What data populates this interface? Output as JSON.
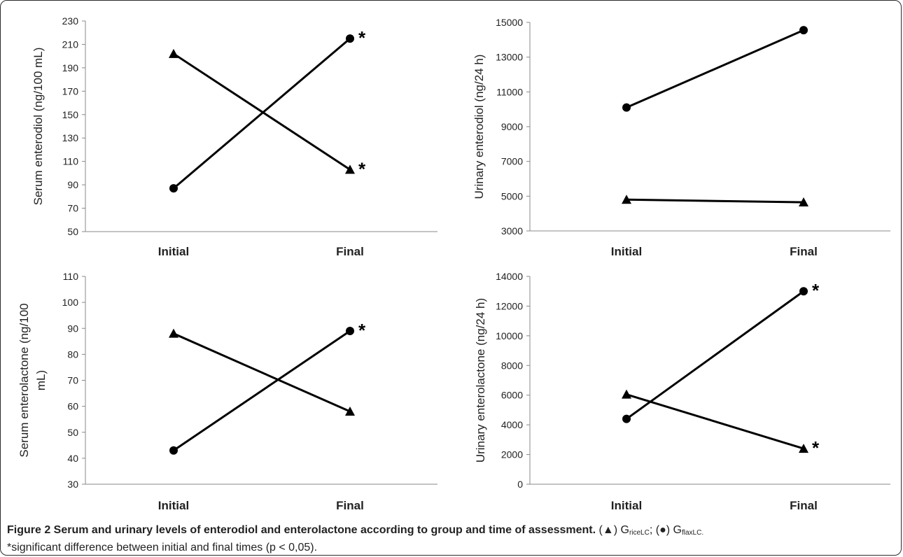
{
  "chart_data": [
    {
      "type": "line",
      "id": "serum-enterodiol",
      "categories": [
        "Initial",
        "Final"
      ],
      "ylabel": "Serum enterodiol  (ng/100 mL)",
      "ylim": [
        50,
        230
      ],
      "yticks": [
        "50",
        "70",
        "90",
        "110",
        "130",
        "150",
        "170",
        "190",
        "210",
        "230"
      ],
      "grid": false,
      "series": [
        {
          "marker": "triangle",
          "values": [
            202,
            103
          ],
          "significant": [
            false,
            true
          ]
        },
        {
          "marker": "circle",
          "values": [
            87,
            215
          ],
          "significant": [
            false,
            true
          ]
        }
      ]
    },
    {
      "type": "line",
      "id": "urinary-enterodiol",
      "categories": [
        "Initial",
        "Final"
      ],
      "ylabel": "Urinary enterodiol (ng/24 h)",
      "ylim": [
        3000,
        15000
      ],
      "yticks": [
        "3000",
        "5000",
        "7000",
        "9000",
        "11000",
        "13000",
        "15000"
      ],
      "grid": false,
      "series": [
        {
          "marker": "triangle",
          "values": [
            4800,
            4650
          ],
          "significant": [
            false,
            false
          ]
        },
        {
          "marker": "circle",
          "values": [
            10100,
            14550
          ],
          "significant": [
            false,
            false
          ]
        }
      ]
    },
    {
      "type": "line",
      "id": "serum-enterolactone",
      "categories": [
        "Initial",
        "Final"
      ],
      "ylabel": "Serum enterolactone  (ng/100 mL)",
      "ylabel_lines": [
        "Serum enterolactone  (ng/100",
        "mL)"
      ],
      "ylim": [
        30,
        110
      ],
      "yticks": [
        "30",
        "40",
        "50",
        "60",
        "70",
        "80",
        "90",
        "100",
        "110"
      ],
      "grid": false,
      "series": [
        {
          "marker": "triangle",
          "values": [
            88,
            58
          ],
          "significant": [
            false,
            false
          ]
        },
        {
          "marker": "circle",
          "values": [
            43,
            89
          ],
          "significant": [
            false,
            true
          ]
        }
      ]
    },
    {
      "type": "line",
      "id": "urinary-enterolactone",
      "categories": [
        "Initial",
        "Final"
      ],
      "ylabel": "Urinary enterolactone (ng/24 h)",
      "ylim": [
        0,
        14000
      ],
      "yticks": [
        "0",
        "2000",
        "4000",
        "6000",
        "8000",
        "10000",
        "12000",
        "14000"
      ],
      "grid": false,
      "series": [
        {
          "marker": "triangle",
          "values": [
            6050,
            2400
          ],
          "significant": [
            false,
            true
          ]
        },
        {
          "marker": "circle",
          "values": [
            4400,
            13000
          ],
          "significant": [
            false,
            true
          ]
        }
      ]
    }
  ],
  "significance_symbol": "*",
  "caption": {
    "title": "Figure 2 Serum and urinary levels of enterodiol and enterolactone according to group and time of assessment.",
    "legend_triangle_symbol": "(▲)",
    "legend_triangle_group": "G",
    "legend_triangle_sub": "riceLC",
    "legend_separator": ";",
    "legend_circle_symbol": "(●)",
    "legend_circle_group": "G",
    "legend_circle_sub": "flaxLC.",
    "note": "*significant difference between initial and final times (p < 0,05)."
  }
}
